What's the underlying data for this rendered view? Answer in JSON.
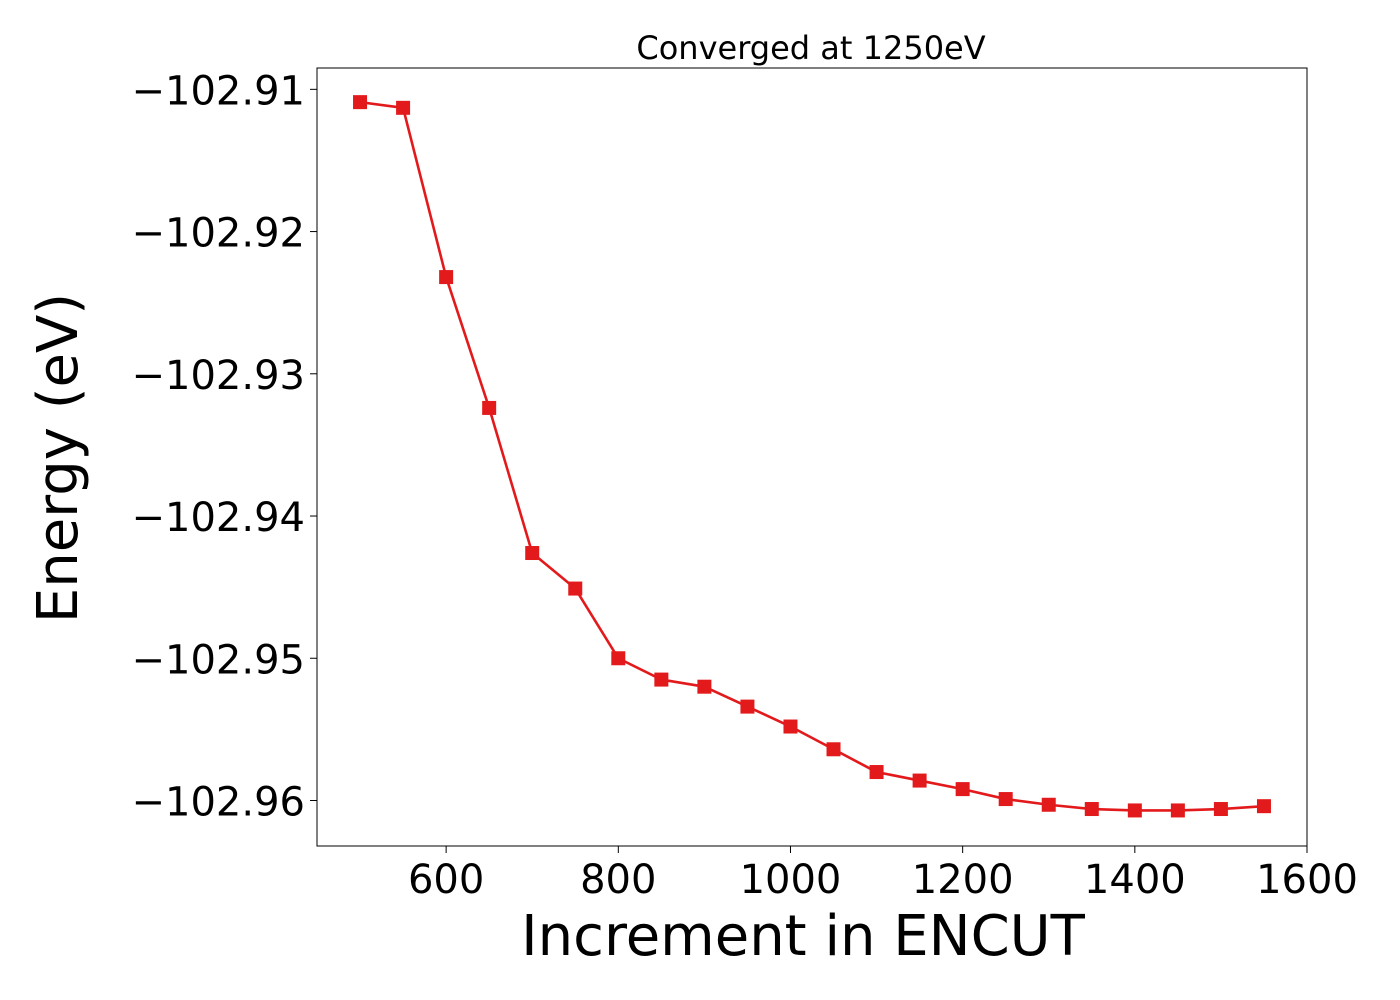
{
  "chart_data": {
    "type": "line",
    "title": "Converged at 1250eV",
    "xlabel": "Increment in ENCUT",
    "ylabel": "Energy (eV)",
    "xlim": [
      450,
      1600
    ],
    "ylim": [
      -102.9632,
      -102.9085
    ],
    "xticks": [
      600,
      800,
      1000,
      1200,
      1400,
      1600
    ],
    "xtick_labels": [
      "600",
      "800",
      "1000",
      "1200",
      "1400",
      "1600"
    ],
    "yticks": [
      -102.91,
      -102.92,
      -102.93,
      -102.94,
      -102.95,
      -102.96
    ],
    "ytick_labels": [
      "−102.91",
      "−102.92",
      "−102.93",
      "−102.94",
      "−102.95",
      "−102.96"
    ],
    "grid": false,
    "series": [
      {
        "color": "#e31a1c",
        "marker": "square",
        "x": [
          500,
          550,
          600,
          650,
          700,
          750,
          800,
          850,
          900,
          950,
          1000,
          1050,
          1100,
          1150,
          1200,
          1250,
          1300,
          1350,
          1400,
          1450,
          1500,
          1550
        ],
        "y": [
          -102.9109,
          -102.9113,
          -102.9232,
          -102.9324,
          -102.9426,
          -102.9451,
          -102.95,
          -102.9515,
          -102.952,
          -102.9534,
          -102.9548,
          -102.9564,
          -102.958,
          -102.9586,
          -102.9592,
          -102.9599,
          -102.9603,
          -102.9606,
          -102.9607,
          -102.9607,
          -102.9606,
          -102.9604
        ]
      }
    ]
  }
}
